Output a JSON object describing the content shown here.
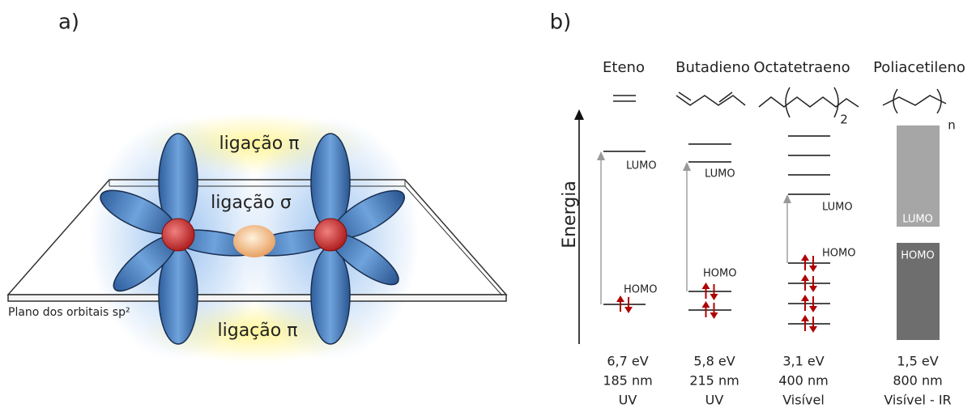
{
  "panel_a": {
    "label": "a)",
    "pi_top": "ligação π",
    "sigma": "ligação σ",
    "pi_bottom": "ligação π",
    "plane": "Plano dos orbitais sp²"
  },
  "panel_b": {
    "label": "b)",
    "axis": "Energia",
    "columns": [
      {
        "name": "Eteno",
        "lumo": "LUMO",
        "homo": "HOMO",
        "energy": "6,7 eV",
        "wavelength": "185 nm",
        "region": "UV"
      },
      {
        "name": "Butadieno",
        "lumo": "LUMO",
        "homo": "HOMO",
        "energy": "5,8 eV",
        "wavelength": "215 nm",
        "region": "UV"
      },
      {
        "name": "Octatetraeno",
        "subscript": "2",
        "lumo": "LUMO",
        "homo": "HOMO",
        "energy": "3,1 eV",
        "wavelength": "400 nm",
        "region": "Visível"
      },
      {
        "name": "Poliacetileno",
        "subscript": "n",
        "lumo": "LUMO",
        "homo": "HOMO",
        "energy": "1,5 eV",
        "wavelength": "800 nm",
        "region": "Visível - IR"
      }
    ]
  }
}
